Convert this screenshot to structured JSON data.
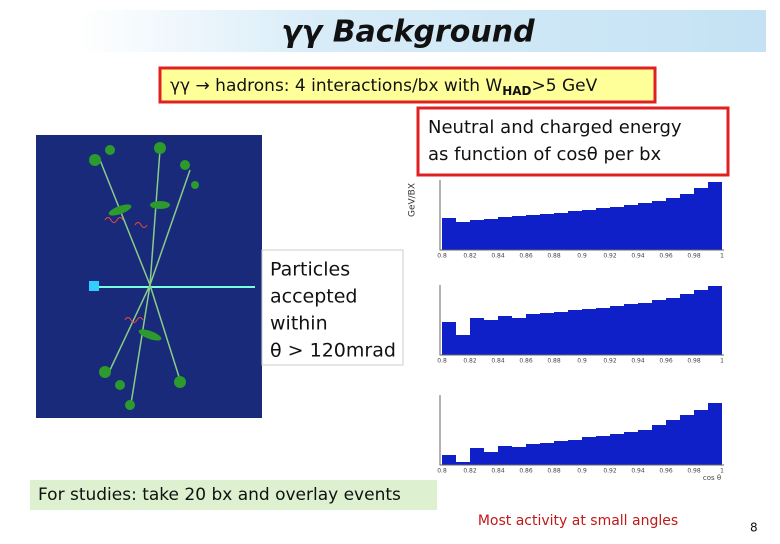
{
  "slide": {
    "title": "γγ Background",
    "headline": {
      "main": "γγ → hadrons:  4 interactions/bx with W",
      "sub": "HAD",
      "tail": ">5 GeV"
    },
    "note_box": [
      "Neutral and charged energy",
      "as function of cosθ  per bx"
    ],
    "particles_box": [
      "Particles",
      "accepted",
      "within",
      "θ > 120mrad"
    ],
    "plots": {
      "y_label": "GeV/BX",
      "x_ticks": [
        "0.8",
        "0.82",
        "0.84",
        "0.86",
        "0.88",
        "0.9",
        "0.92",
        "0.94",
        "0.96",
        "0.98",
        "1"
      ],
      "x_title": "cos θ"
    },
    "studies_box": "For studies: take 20 bx and overlay events",
    "conclusion": "Most activity at small angles",
    "page_number": "8"
  }
}
